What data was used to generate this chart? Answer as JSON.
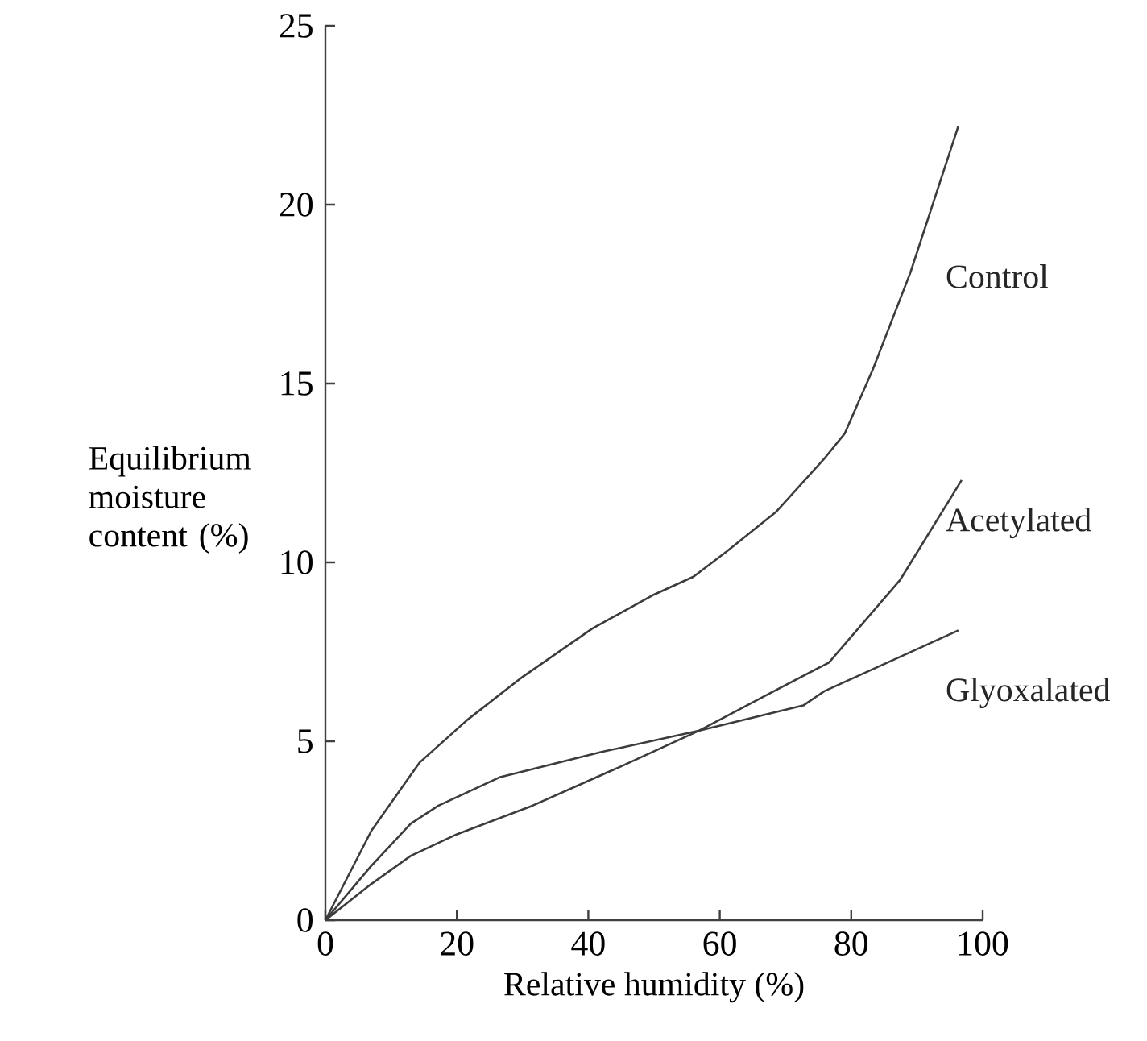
{
  "chart_data": {
    "type": "line",
    "xlabel": "Relative humidity (%)",
    "ylabel": "Equilibrium moisture content (%)",
    "xlim": [
      0,
      100
    ],
    "ylim": [
      0,
      25
    ],
    "xticks": [
      0,
      20,
      40,
      60,
      80,
      100
    ],
    "yticks": [
      0,
      5,
      10,
      15,
      20,
      25
    ],
    "series": [
      {
        "name": "Control",
        "color": "#3c3c3c",
        "x": [
          0,
          7,
          14.3,
          21.6,
          30,
          40.6,
          50,
          56,
          61,
          68.5,
          75.9,
          79,
          83.3,
          89,
          96.3
        ],
        "values": [
          0,
          2.5,
          4.4,
          5.6,
          6.8,
          8.15,
          9.1,
          9.6,
          10.3,
          11.4,
          12.9,
          13.6,
          15.4,
          18.1,
          22.2
        ]
      },
      {
        "name": "Acetylated",
        "color": "#3c3c3c",
        "x": [
          0,
          6.9,
          13,
          20,
          31.5,
          45,
          56.9,
          67.7,
          76.6,
          87.4,
          96.8
        ],
        "values": [
          0,
          1.0,
          1.8,
          2.4,
          3.2,
          4.3,
          5.3,
          6.35,
          7.2,
          9.5,
          12.3
        ]
      },
      {
        "name": "Glyoxalated",
        "color": "#3c3c3c",
        "x": [
          0,
          6.9,
          13,
          17.2,
          26.6,
          42,
          56.9,
          72.7,
          75.9,
          96.3
        ],
        "values": [
          0,
          1.5,
          2.7,
          3.2,
          4.0,
          4.7,
          5.3,
          6.0,
          6.4,
          8.1
        ]
      }
    ]
  }
}
